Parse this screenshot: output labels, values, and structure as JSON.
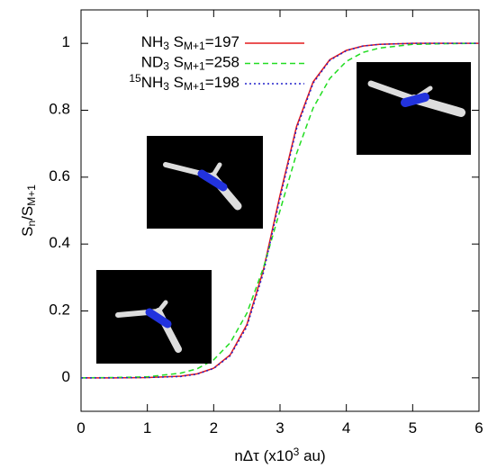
{
  "chart_data": {
    "type": "line",
    "xlabel": "nΔτ (x10^{3} au)",
    "ylabel": "S_{n}/S_{M+1}",
    "x": [
      0,
      0.5,
      1,
      1.5,
      1.75,
      2,
      2.25,
      2.5,
      2.75,
      3,
      3.25,
      3.5,
      3.75,
      4,
      4.25,
      4.5,
      5,
      5.5,
      6
    ],
    "series": [
      {
        "name": "NH_{3} S_{M+1}=197",
        "color": "#e41a1c",
        "dash": "solid",
        "values": [
          0,
          0,
          0.001,
          0.005,
          0.012,
          0.029,
          0.069,
          0.159,
          0.323,
          0.546,
          0.752,
          0.885,
          0.951,
          0.979,
          0.992,
          0.997,
          1.0,
          1.0,
          1.0
        ]
      },
      {
        "name": "ND_{3} S_{M+1}=258",
        "color": "#22dd22",
        "dash": "dashed",
        "values": [
          0,
          0.001,
          0.003,
          0.014,
          0.027,
          0.054,
          0.105,
          0.193,
          0.329,
          0.5,
          0.671,
          0.807,
          0.895,
          0.946,
          0.973,
          0.986,
          0.997,
          0.999,
          1.0
        ]
      },
      {
        "name": "^{15}NH_{3} S_{M+1}=198",
        "color": "#2222cc",
        "dash": "dotted",
        "values": [
          0,
          0,
          0.001,
          0.004,
          0.011,
          0.028,
          0.066,
          0.153,
          0.314,
          0.537,
          0.745,
          0.881,
          0.949,
          0.978,
          0.992,
          0.997,
          1.0,
          1.0,
          1.0
        ]
      }
    ],
    "xlim": [
      0,
      6
    ],
    "xticks": [
      0,
      1,
      2,
      3,
      4,
      5,
      6
    ],
    "ylim": [
      -0.1,
      1.1
    ],
    "yticks": [
      0,
      0.2,
      0.4,
      0.6,
      0.8,
      1
    ],
    "legend": "top-left"
  }
}
